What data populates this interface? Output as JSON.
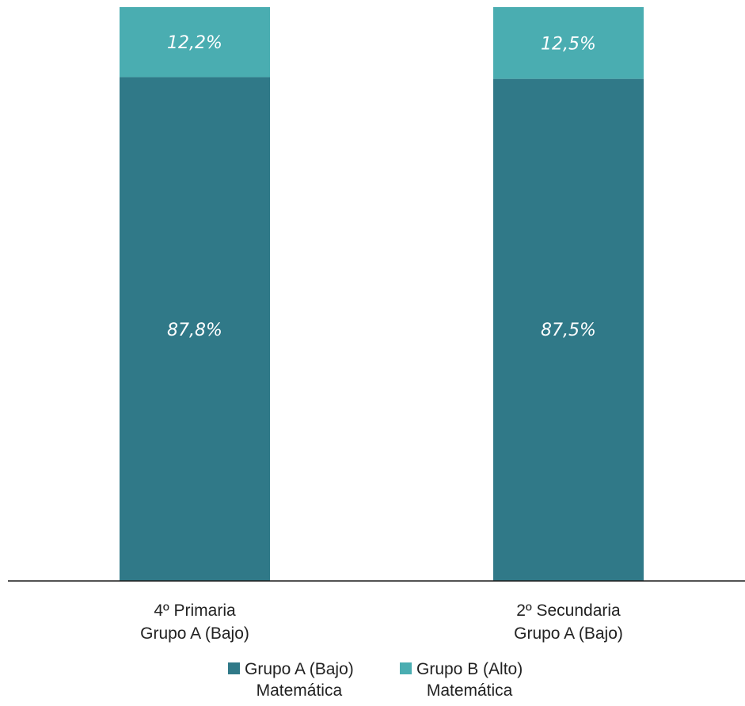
{
  "chart_data": {
    "type": "bar",
    "stacked": true,
    "categories": [
      [
        "4º Primaria",
        "Grupo A (Bajo)"
      ],
      [
        "2º Secundaria",
        "Grupo A (Bajo)"
      ]
    ],
    "series": [
      {
        "name": "Grupo A (Bajo) Matemática",
        "legend_lines": [
          "Grupo A (Bajo)",
          "Matemática"
        ],
        "values": [
          87.8,
          87.5
        ],
        "labels": [
          "87,8%",
          "87,5%"
        ],
        "color": "#307988"
      },
      {
        "name": "Grupo B (Alto) Matemática",
        "legend_lines": [
          "Grupo B (Alto)",
          "Matemática"
        ],
        "values": [
          12.2,
          12.5
        ],
        "labels": [
          "12,2%",
          "12,5%"
        ],
        "color": "#4aadb1"
      }
    ],
    "ylim": [
      0,
      100
    ],
    "grid": false,
    "legend_position": "bottom"
  }
}
